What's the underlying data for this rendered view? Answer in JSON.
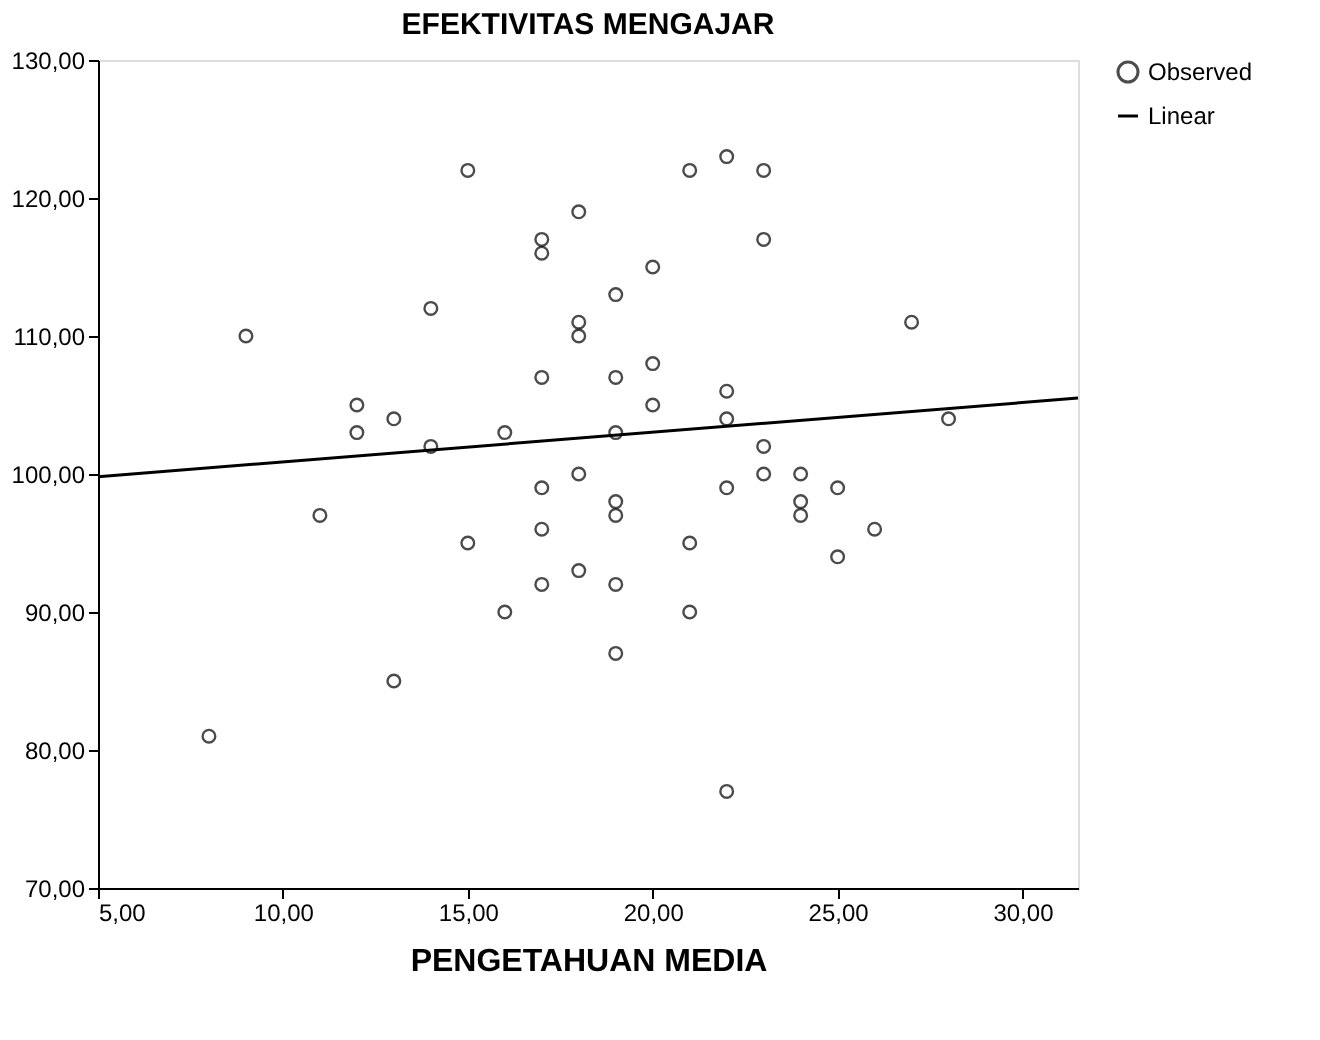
{
  "chart_data": {
    "type": "scatter",
    "title": "EFEKTIVITAS MENGAJAR",
    "xlabel": "PENGETAHUAN MEDIA",
    "xlim": [
      5,
      31.5
    ],
    "ylim": [
      70,
      130
    ],
    "xticks": [
      {
        "value": 5,
        "label": "5,00"
      },
      {
        "value": 10,
        "label": "10,00"
      },
      {
        "value": 15,
        "label": "15,00"
      },
      {
        "value": 20,
        "label": "20,00"
      },
      {
        "value": 25,
        "label": "25,00"
      },
      {
        "value": 30,
        "label": "30,00"
      }
    ],
    "yticks": [
      {
        "value": 70,
        "label": "70,00"
      },
      {
        "value": 80,
        "label": "80,00"
      },
      {
        "value": 90,
        "label": "90,00"
      },
      {
        "value": 100,
        "label": "100,00"
      },
      {
        "value": 110,
        "label": "110,00"
      },
      {
        "value": 120,
        "label": "120,00"
      },
      {
        "value": 130,
        "label": "130,00"
      }
    ],
    "grid": false,
    "legend": "top right",
    "series": [
      {
        "name": "Observed",
        "marker": "circle",
        "color": "#000000",
        "x": [
          8,
          9,
          11,
          12,
          12,
          13,
          13,
          14,
          14,
          15,
          15,
          16,
          16,
          17,
          17,
          17,
          17,
          17,
          17,
          18,
          18,
          18,
          18,
          18,
          19,
          19,
          19,
          19,
          19,
          19,
          19,
          20,
          20,
          20,
          21,
          21,
          21,
          22,
          22,
          22,
          22,
          22,
          23,
          23,
          23,
          23,
          24,
          24,
          24,
          25,
          25,
          26,
          27,
          28
        ],
        "values": [
          81,
          110,
          97,
          105,
          103,
          104,
          85,
          112,
          102,
          122,
          95,
          103,
          90,
          117,
          116,
          107,
          99,
          96,
          92,
          119,
          111,
          110,
          100,
          93,
          113,
          107,
          103,
          98,
          97,
          92,
          87,
          115,
          108,
          105,
          122,
          95,
          90,
          123,
          106,
          104,
          99,
          77,
          122,
          117,
          102,
          100,
          100,
          98,
          97,
          99,
          94,
          96,
          111,
          104
        ]
      },
      {
        "name": "Linear",
        "type": "line",
        "marker": "none",
        "line_style": "solid",
        "color": "#000000",
        "x": [
          5,
          31.5
        ],
        "values": [
          99.8,
          105.5
        ]
      }
    ]
  }
}
